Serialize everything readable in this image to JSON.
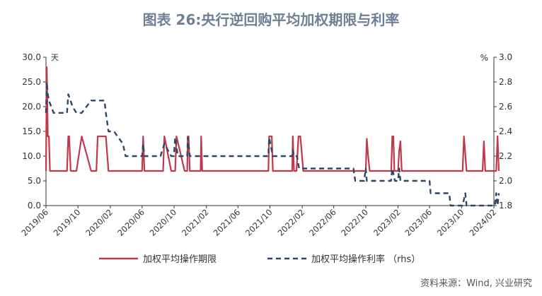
{
  "title": "图表 26:央行逆回购平均加权期限与利率",
  "source": "资料来源：Wind, 兴业研究",
  "colors": {
    "term": "#c0394b",
    "rate": "#2f4766",
    "axis": "#333333",
    "text": "#333333"
  },
  "chart_data": {
    "type": "line",
    "left_unit": "天",
    "right_unit": "%",
    "x_ticks": [
      "2019/06",
      "2019/10",
      "2020/02",
      "2020/06",
      "2020/10",
      "2021/02",
      "2021/06",
      "2021/10",
      "2022/02",
      "2022/06",
      "2022/10",
      "2023/02",
      "2023/06",
      "2023/10",
      "2024/02"
    ],
    "ylim_left": [
      0,
      30
    ],
    "yticks_left": [
      "0.0",
      "5.0",
      "10.0",
      "15.0",
      "20.0",
      "25.0",
      "30.0"
    ],
    "ylim_right": [
      1.8,
      3.0
    ],
    "yticks_right": [
      "1.8",
      "2.0",
      "2.2",
      "2.4",
      "2.6",
      "2.8",
      "3.0"
    ],
    "legend_position": "bottom",
    "grid": false,
    "series": [
      {
        "name": "加权平均操作期限",
        "axis": "left",
        "style": "solid",
        "x": [
          "2019-06-01",
          "2019-06-04",
          "2019-06-06",
          "2019-06-08",
          "2019-06-12",
          "2019-06-16",
          "2019-06-30",
          "2019-07-20",
          "2019-08-20",
          "2019-08-25",
          "2019-08-28",
          "2019-09-03",
          "2019-09-10",
          "2019-09-25",
          "2019-10-15",
          "2019-11-20",
          "2019-12-10",
          "2019-12-15",
          "2020-01-10",
          "2020-01-15",
          "2020-01-25",
          "2020-02-01",
          "2020-02-08",
          "2020-05-15",
          "2020-05-25",
          "2020-06-01",
          "2020-06-05",
          "2020-06-10",
          "2020-08-10",
          "2020-08-20",
          "2020-08-25",
          "2020-09-20",
          "2020-09-30",
          "2020-10-05",
          "2020-10-10",
          "2020-11-10",
          "2020-11-20",
          "2020-11-22",
          "2020-11-25",
          "2020-11-30",
          "2021-01-05",
          "2021-01-10",
          "2021-01-12",
          "2021-01-16",
          "2021-09-25",
          "2021-09-28",
          "2021-10-08",
          "2021-10-12",
          "2021-12-25",
          "2021-12-27",
          "2022-01-01",
          "2022-01-10",
          "2022-01-18",
          "2022-01-25",
          "2022-02-05",
          "2022-10-01",
          "2022-10-05",
          "2022-10-10",
          "2022-10-16",
          "2022-10-22",
          "2023-01-06",
          "2023-01-10",
          "2023-01-14",
          "2023-01-18",
          "2023-02-01",
          "2023-02-05",
          "2023-02-10",
          "2023-02-15",
          "2023-02-20",
          "2023-02-25",
          "2023-10-05",
          "2023-10-10",
          "2023-10-20",
          "2023-12-20",
          "2023-12-25",
          "2023-12-30",
          "2024-02-05",
          "2024-02-10",
          "2024-02-15",
          "2024-02-20"
        ],
        "y": [
          7,
          28,
          21,
          14,
          14,
          7,
          7,
          7,
          7,
          14,
          14,
          7,
          7,
          7,
          14,
          7,
          7,
          14,
          14,
          14,
          7,
          7,
          7,
          7,
          7,
          7,
          14,
          7,
          7,
          7,
          14,
          7,
          7,
          7,
          14,
          7,
          7,
          14,
          14,
          7,
          7,
          7,
          14,
          7,
          7,
          14,
          14,
          7,
          7,
          14,
          7,
          7,
          14,
          14,
          7,
          7,
          13.5,
          10,
          7,
          7,
          7,
          14,
          14,
          7,
          7,
          11,
          13,
          7,
          7,
          7,
          7,
          14,
          7,
          7,
          13,
          7,
          7,
          7,
          14,
          7
        ]
      },
      {
        "name": "加权平均操作利率 （rhs）",
        "axis": "right",
        "style": "dashed",
        "x": [
          "2019-06-01",
          "2019-06-04",
          "2019-06-08",
          "2019-06-12",
          "2019-06-30",
          "2019-07-20",
          "2019-08-20",
          "2019-08-25",
          "2019-09-10",
          "2019-09-25",
          "2019-10-15",
          "2019-11-20",
          "2019-12-10",
          "2019-12-15",
          "2020-01-10",
          "2020-01-15",
          "2020-01-25",
          "2020-02-15",
          "2020-03-20",
          "2020-03-30",
          "2020-06-01",
          "2020-06-05",
          "2020-06-10",
          "2020-08-10",
          "2020-08-25",
          "2020-09-20",
          "2020-09-30",
          "2020-10-05",
          "2020-10-15",
          "2020-11-20",
          "2020-11-22",
          "2020-11-30",
          "2021-01-05",
          "2021-01-10",
          "2021-01-16",
          "2021-09-25",
          "2021-09-28",
          "2021-10-12",
          "2021-12-25",
          "2021-12-27",
          "2022-01-01",
          "2022-01-12",
          "2022-01-20",
          "2022-01-25",
          "2022-01-31",
          "2022-08-15",
          "2022-08-22",
          "2022-09-25",
          "2022-10-01",
          "2022-10-05",
          "2022-10-20",
          "2022-12-01",
          "2023-01-05",
          "2023-01-10",
          "2023-01-20",
          "2023-02-01",
          "2023-02-05",
          "2023-02-10",
          "2023-06-01",
          "2023-06-05",
          "2023-08-15",
          "2023-08-20",
          "2023-10-05",
          "2023-10-15",
          "2023-10-20",
          "2023-12-20",
          "2023-12-25",
          "2023-12-30",
          "2024-01-25",
          "2024-02-05",
          "2024-02-10",
          "2024-02-15",
          "2024-02-20"
        ],
        "y": [
          2.55,
          2.8,
          2.7,
          2.65,
          2.55,
          2.55,
          2.55,
          2.7,
          2.6,
          2.55,
          2.55,
          2.65,
          2.65,
          2.65,
          2.65,
          2.55,
          2.4,
          2.4,
          2.3,
          2.2,
          2.2,
          2.3,
          2.2,
          2.2,
          2.3,
          2.2,
          2.2,
          2.35,
          2.2,
          2.2,
          2.35,
          2.2,
          2.2,
          2.2,
          2.2,
          2.2,
          2.35,
          2.2,
          2.2,
          2.25,
          2.2,
          2.2,
          2.1,
          2.1,
          2.1,
          2.1,
          2.0,
          2.0,
          2.1,
          2.0,
          2.0,
          2.0,
          2.0,
          2.1,
          2.0,
          2.0,
          2.1,
          2.0,
          2.0,
          1.9,
          1.9,
          1.8,
          1.8,
          1.9,
          1.8,
          1.8,
          1.8,
          1.8,
          1.8,
          1.8,
          1.9,
          1.8,
          1.9
        ]
      }
    ]
  }
}
